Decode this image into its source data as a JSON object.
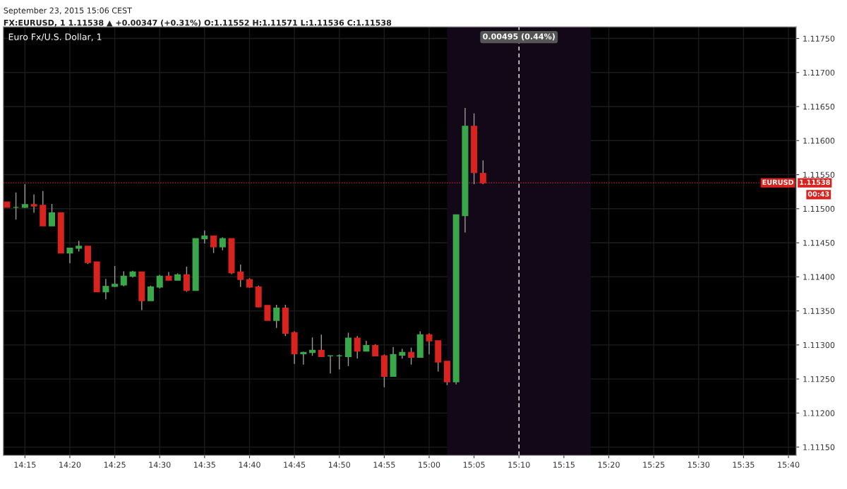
{
  "chart_data": {
    "type": "candlestick",
    "title": "Euro Fx/U.S. Dollar, 1",
    "annotations": [
      "September 23, 2015 15:06 CEST",
      "FX:EURUSD, 1 1.11538 ▲ +0.00347 (+0.31%) O:1.11552 H:1.11571 L:1.11536 C:1.11538",
      "1.11538",
      "00:43"
    ],
    "x": [
      14.2167,
      14.2333,
      14.25,
      14.2667,
      14.2833,
      14.3,
      14.3167,
      14.3333,
      14.35,
      14.3667,
      14.3833,
      14.4,
      14.4167,
      14.4333,
      14.45,
      14.4667,
      14.4833,
      14.5,
      14.5167,
      14.5333,
      14.55,
      14.5667,
      14.5833,
      14.6,
      14.6167,
      14.6333,
      14.65,
      14.6667,
      14.6833,
      14.7,
      14.7167,
      14.7333,
      14.75,
      14.7667,
      14.7833,
      14.8,
      14.8167,
      14.8333,
      14.85,
      14.8667,
      14.8833,
      14.9,
      14.9167,
      14.9333,
      14.95,
      14.9667,
      14.9833,
      15.0,
      15.0167,
      15.0333,
      15.05,
      15.0667,
      15.0833,
      15.1
    ],
    "ohlc": [
      [
        1.1151,
        1.1151,
        1.11502,
        1.11502
      ],
      [
        1.11502,
        1.11524,
        1.11484,
        1.11502
      ],
      [
        1.11502,
        1.11536,
        1.11501,
        1.11506
      ],
      [
        1.11506,
        1.11521,
        1.11494,
        1.11504
      ],
      [
        1.11505,
        1.11526,
        1.11475,
        1.11475
      ],
      [
        1.11475,
        1.11507,
        1.11475,
        1.11494
      ],
      [
        1.11494,
        1.11494,
        1.11435,
        1.11435
      ],
      [
        1.11435,
        1.11442,
        1.1142,
        1.11442
      ],
      [
        1.11442,
        1.11453,
        1.11437,
        1.11445
      ],
      [
        1.11445,
        1.11445,
        1.11419,
        1.11421
      ],
      [
        1.11422,
        1.11422,
        1.11378,
        1.11378
      ],
      [
        1.11378,
        1.11397,
        1.11367,
        1.11386
      ],
      [
        1.11386,
        1.11416,
        1.11385,
        1.11389
      ],
      [
        1.11388,
        1.11408,
        1.11386,
        1.11401
      ],
      [
        1.11401,
        1.11409,
        1.11399,
        1.11407
      ],
      [
        1.11407,
        1.11407,
        1.11351,
        1.11365
      ],
      [
        1.11365,
        1.11387,
        1.11365,
        1.11385
      ],
      [
        1.11385,
        1.11403,
        1.11383,
        1.11401
      ],
      [
        1.11401,
        1.11407,
        1.11395,
        1.11395
      ],
      [
        1.11395,
        1.11405,
        1.11395,
        1.11403
      ],
      [
        1.11403,
        1.11415,
        1.11378,
        1.1138
      ],
      [
        1.1138,
        1.11456,
        1.1138,
        1.11456
      ],
      [
        1.11456,
        1.11468,
        1.11449,
        1.1146
      ],
      [
        1.1146,
        1.1146,
        1.11435,
        1.11444
      ],
      [
        1.11444,
        1.11458,
        1.11439,
        1.11456
      ],
      [
        1.11456,
        1.11456,
        1.11404,
        1.11406
      ],
      [
        1.11407,
        1.11418,
        1.11385,
        1.11396
      ],
      [
        1.11396,
        1.11398,
        1.11384,
        1.11385
      ],
      [
        1.11385,
        1.11387,
        1.11355,
        1.11356
      ],
      [
        1.11358,
        1.11358,
        1.11336,
        1.11336
      ],
      [
        1.11336,
        1.11359,
        1.11325,
        1.11354
      ],
      [
        1.11354,
        1.11359,
        1.11313,
        1.11317
      ],
      [
        1.11318,
        1.1132,
        1.11272,
        1.11287
      ],
      [
        1.11287,
        1.1129,
        1.11271,
        1.11289
      ],
      [
        1.11289,
        1.11311,
        1.11284,
        1.11292
      ],
      [
        1.11292,
        1.11315,
        1.11283,
        1.11283
      ],
      [
        1.11284,
        1.11284,
        1.11258,
        1.11284
      ],
      [
        1.11284,
        1.11286,
        1.11264,
        1.11284
      ],
      [
        1.11283,
        1.11318,
        1.11269,
        1.1131
      ],
      [
        1.1131,
        1.11313,
        1.1128,
        1.11291
      ],
      [
        1.11291,
        1.11306,
        1.11291,
        1.11299
      ],
      [
        1.11299,
        1.11301,
        1.11284,
        1.11284
      ],
      [
        1.11284,
        1.11286,
        1.11238,
        1.11254
      ],
      [
        1.11254,
        1.11297,
        1.11254,
        1.11286
      ],
      [
        1.11285,
        1.11294,
        1.1128,
        1.11289
      ],
      [
        1.11289,
        1.11296,
        1.11271,
        1.11282
      ],
      [
        1.11282,
        1.1132,
        1.11282,
        1.11315
      ],
      [
        1.11315,
        1.11317,
        1.11286,
        1.11306
      ],
      [
        1.11306,
        1.11306,
        1.11261,
        1.11275
      ],
      [
        1.11276,
        1.11276,
        1.11241,
        1.11246
      ],
      [
        1.11246,
        1.11491,
        1.11242,
        1.11491
      ],
      [
        1.1149,
        1.11648,
        1.11465,
        1.11621
      ],
      [
        1.11621,
        1.1164,
        1.11536,
        1.11553
      ],
      [
        1.11552,
        1.11571,
        1.11536,
        1.11538
      ]
    ],
    "colors": [
      "#d8231f",
      "#3aa84a",
      "#3aa84a",
      "#d8231f",
      "#d8231f",
      "#3aa84a",
      "#d8231f",
      "#3aa84a",
      "#3aa84a",
      "#d8231f",
      "#d8231f",
      "#3aa84a",
      "#3aa84a",
      "#3aa84a",
      "#3aa84a",
      "#d8231f",
      "#3aa84a",
      "#3aa84a",
      "#d8231f",
      "#3aa84a",
      "#d8231f",
      "#3aa84a",
      "#3aa84a",
      "#d8231f",
      "#3aa84a",
      "#d8231f",
      "#d8231f",
      "#d8231f",
      "#d8231f",
      "#d8231f",
      "#3aa84a",
      "#d8231f",
      "#d8231f",
      "#3aa84a",
      "#3aa84a",
      "#d8231f",
      "#3aa84a",
      "#3aa84a",
      "#3aa84a",
      "#d8231f",
      "#3aa84a",
      "#d8231f",
      "#d8231f",
      "#3aa84a",
      "#3aa84a",
      "#d8231f",
      "#3aa84a",
      "#d8231f",
      "#d8231f",
      "#d8231f",
      "#3aa84a",
      "#3aa84a",
      "#d8231f",
      "#d8231f"
    ],
    "xlim": [
      14.21,
      15.681
    ],
    "xticks": [
      {
        "value": 14.25,
        "label": "14:15"
      },
      {
        "value": 14.3333,
        "label": "14:20"
      },
      {
        "value": 14.4167,
        "label": "14:25"
      },
      {
        "value": 14.5,
        "label": "14:30"
      },
      {
        "value": 14.5833,
        "label": "14:35"
      },
      {
        "value": 14.6667,
        "label": "14:40"
      },
      {
        "value": 14.75,
        "label": "14:45"
      },
      {
        "value": 14.8333,
        "label": "14:50"
      },
      {
        "value": 14.9167,
        "label": "14:55"
      },
      {
        "value": 15.0,
        "label": "15:00"
      },
      {
        "value": 15.0833,
        "label": "15:05"
      },
      {
        "value": 15.1667,
        "label": "15:10"
      },
      {
        "value": 15.25,
        "label": "15:15"
      },
      {
        "value": 15.3333,
        "label": "15:20"
      },
      {
        "value": 15.4167,
        "label": "15:25"
      },
      {
        "value": 15.5,
        "label": "15:30"
      },
      {
        "value": 15.5833,
        "label": "15:35"
      },
      {
        "value": 15.6667,
        "label": "15:40"
      }
    ],
    "ylim": [
      1.11138,
      1.11767
    ],
    "yticks": [
      {
        "value": 1.1115,
        "label": "1.11150"
      },
      {
        "value": 1.112,
        "label": "1.11200"
      },
      {
        "value": 1.1125,
        "label": "1.11250"
      },
      {
        "value": 1.113,
        "label": "1.11300"
      },
      {
        "value": 1.1135,
        "label": "1.11350"
      },
      {
        "value": 1.114,
        "label": "1.11400"
      },
      {
        "value": 1.1145,
        "label": "1.11450"
      },
      {
        "value": 1.115,
        "label": "1.11500"
      },
      {
        "value": 1.1155,
        "label": "1.11550"
      },
      {
        "value": 1.116,
        "label": "1.11600"
      },
      {
        "value": 1.1165,
        "label": "1.11650"
      },
      {
        "value": 1.117,
        "label": "1.11700"
      },
      {
        "value": 1.1175,
        "label": "1.11750"
      }
    ],
    "grid": true,
    "ref_lines": [
      {
        "axis": "y",
        "value": 1.11538,
        "label": "EURUSD",
        "color": "#d8231f",
        "line_style": "dotted"
      },
      {
        "axis": "x",
        "value": 15.1667,
        "color": "#ffffff",
        "line_style": "dashed"
      }
    ],
    "bands": [
      {
        "axis": "x",
        "from": 15.0333,
        "to": 15.3,
        "label": "0.00495 (0.44%)",
        "color": "#120818"
      }
    ]
  }
}
